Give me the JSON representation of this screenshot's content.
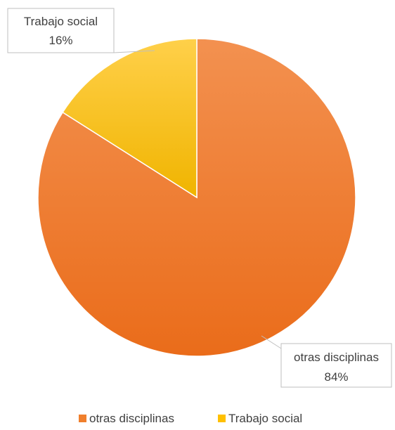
{
  "chart_data": {
    "type": "pie",
    "categories": [
      "otras disciplinas",
      "Trabajo social"
    ],
    "values": [
      84,
      16
    ],
    "value_labels": [
      "84%",
      "16%"
    ],
    "colors": [
      "#f07f2c",
      "#ffc000"
    ],
    "start_angle_deg": 0,
    "direction": "clockwise",
    "legend": {
      "position": "bottom",
      "entries": [
        "otras disciplinas",
        "Trabajo social"
      ]
    },
    "data_labels": true
  }
}
